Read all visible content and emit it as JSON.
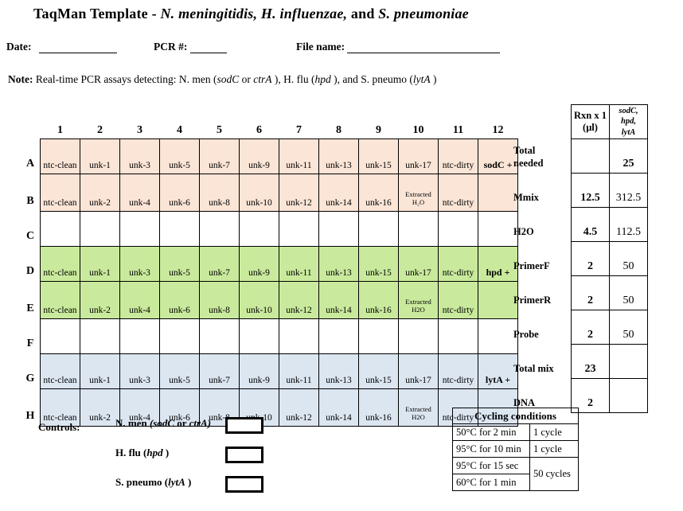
{
  "header": {
    "title_runs": [
      {
        "t": "TaqMan Template",
        "b": 1
      },
      {
        "t": " - ",
        "b": 1
      },
      {
        "t": "N. meningitidis, H. influenzae,",
        "b": 1,
        "i": 1
      },
      {
        "t": " and ",
        "b": 1
      },
      {
        "t": "S. pneumoniae",
        "b": 1,
        "i": 1
      }
    ],
    "fields": [
      {
        "label": "Date:"
      },
      {
        "label": "PCR #:"
      },
      {
        "label": "File name:"
      }
    ]
  },
  "note_runs": [
    {
      "t": "Note:",
      "b": 1
    },
    {
      "t": " Real-time PCR assays detecting: N. men ("
    },
    {
      "t": "sodC",
      "i": 1
    },
    {
      "t": "  or "
    },
    {
      "t": "ctrA",
      "i": 1
    },
    {
      "t": " ), H. flu ("
    },
    {
      "t": "hpd",
      "i": 1
    },
    {
      "t": " ), and S. pneumo ("
    },
    {
      "t": "lytA",
      "i": 1
    },
    {
      "t": " )"
    }
  ],
  "colors": {
    "peach": "#FBE5D6",
    "green": "#C9EA9C",
    "blue": "#DCE6F1",
    "white": "#FFFFFF"
  },
  "plate": {
    "column_headers": [
      "1",
      "2",
      "3",
      "4",
      "5",
      "6",
      "7",
      "8",
      "9",
      "10",
      "11",
      "12"
    ],
    "rows": [
      {
        "label": "A",
        "color": "peach",
        "cells": [
          "ntc-clean",
          "unk-1",
          "unk-3",
          "unk-5",
          "unk-7",
          "unk-9",
          "unk-11",
          "unk-13",
          "unk-15",
          "unk-17",
          "ntc-dirty",
          "sodC +"
        ]
      },
      {
        "label": "B",
        "color": "peach",
        "cells": [
          "ntc-clean",
          "unk-2",
          "unk-4",
          "unk-6",
          "unk-8",
          "unk-10",
          "unk-12",
          "unk-14",
          "unk-16",
          "Extracted H₂O",
          "ntc-dirty",
          ""
        ]
      },
      {
        "label": "C",
        "color": "white",
        "cells": [
          "",
          "",
          "",
          "",
          "",
          "",
          "",
          "",
          "",
          "",
          "",
          ""
        ]
      },
      {
        "label": "D",
        "color": "green",
        "cells": [
          "ntc-clean",
          "unk-1",
          "unk-3",
          "unk-5",
          "unk-7",
          "unk-9",
          "unk-11",
          "unk-13",
          "unk-15",
          "unk-17",
          "ntc-dirty",
          "hpd +"
        ]
      },
      {
        "label": "E",
        "color": "green",
        "cells": [
          "ntc-clean",
          "unk-2",
          "unk-4",
          "unk-6",
          "unk-8",
          "unk-10",
          "unk-12",
          "unk-14",
          "unk-16",
          "Extracted H2O",
          "ntc-dirty",
          ""
        ]
      },
      {
        "label": "F",
        "color": "white",
        "cells": [
          "",
          "",
          "",
          "",
          "",
          "",
          "",
          "",
          "",
          "",
          "",
          ""
        ]
      },
      {
        "label": "G",
        "color": "blue",
        "cells": [
          "ntc-clean",
          "unk-1",
          "unk-3",
          "unk-5",
          "unk-7",
          "unk-9",
          "unk-11",
          "unk-13",
          "unk-15",
          "unk-17",
          "ntc-dirty",
          "lytA +"
        ]
      },
      {
        "label": "H",
        "color": "blue",
        "cells": [
          "ntc-clean",
          "unk-2",
          "unk-4",
          "unk-6",
          "unk-8",
          "unk-10",
          "unk-12",
          "unk-14",
          "unk-16",
          "Extracted H2O",
          "ntc-dirty",
          ""
        ]
      }
    ]
  },
  "mix_table": {
    "headers": {
      "rxn": "Rxn x 1\n(μl)",
      "assay": "sodC,\nhpd,\nlytA"
    },
    "rows": [
      {
        "label": "Total\nneeded",
        "rxn": "",
        "assay": "25"
      },
      {
        "label": "Mmix",
        "rxn": "12.5",
        "assay": "312.5"
      },
      {
        "label": "H2O",
        "rxn": "4.5",
        "assay": "112.5"
      },
      {
        "label": "PrimerF",
        "rxn": "2",
        "assay": "50"
      },
      {
        "label": "PrimerR",
        "rxn": "2",
        "assay": "50"
      },
      {
        "label": "Probe",
        "rxn": "2",
        "assay": "50"
      },
      {
        "label": "Total mix",
        "rxn": "23",
        "assay": ""
      },
      {
        "label": "DNA",
        "rxn": "2",
        "assay": ""
      }
    ]
  },
  "cycling": {
    "title": "Cycling conditions",
    "steps": [
      "50°C for 2 min",
      "95°C for 10 min",
      "95°C for 15 sec",
      "60°C for 1 min"
    ],
    "cycles": [
      {
        "text": "1 cycle",
        "span": 1
      },
      {
        "text": "1 cycle",
        "span": 1
      },
      {
        "text": "50 cycles",
        "span": 2
      }
    ]
  },
  "controls": {
    "label": "Controls:",
    "items": [
      {
        "runs": [
          {
            "t": "N. men ",
            "b": 1
          },
          {
            "t": "(sodC ",
            "b": 1,
            "i": 1
          },
          {
            "t": " or ",
            "b": 1
          },
          {
            "t": "ctrA)",
            "b": 1,
            "i": 1
          }
        ]
      },
      {
        "runs": [
          {
            "t": "H. flu (",
            "b": 1
          },
          {
            "t": "hpd",
            "b": 1,
            "i": 1
          },
          {
            "t": " )",
            "b": 1
          }
        ]
      },
      {
        "runs": [
          {
            "t": "S. pneumo (",
            "b": 1
          },
          {
            "t": "lytA",
            "b": 1,
            "i": 1
          },
          {
            "t": " )",
            "b": 1
          }
        ]
      }
    ]
  }
}
